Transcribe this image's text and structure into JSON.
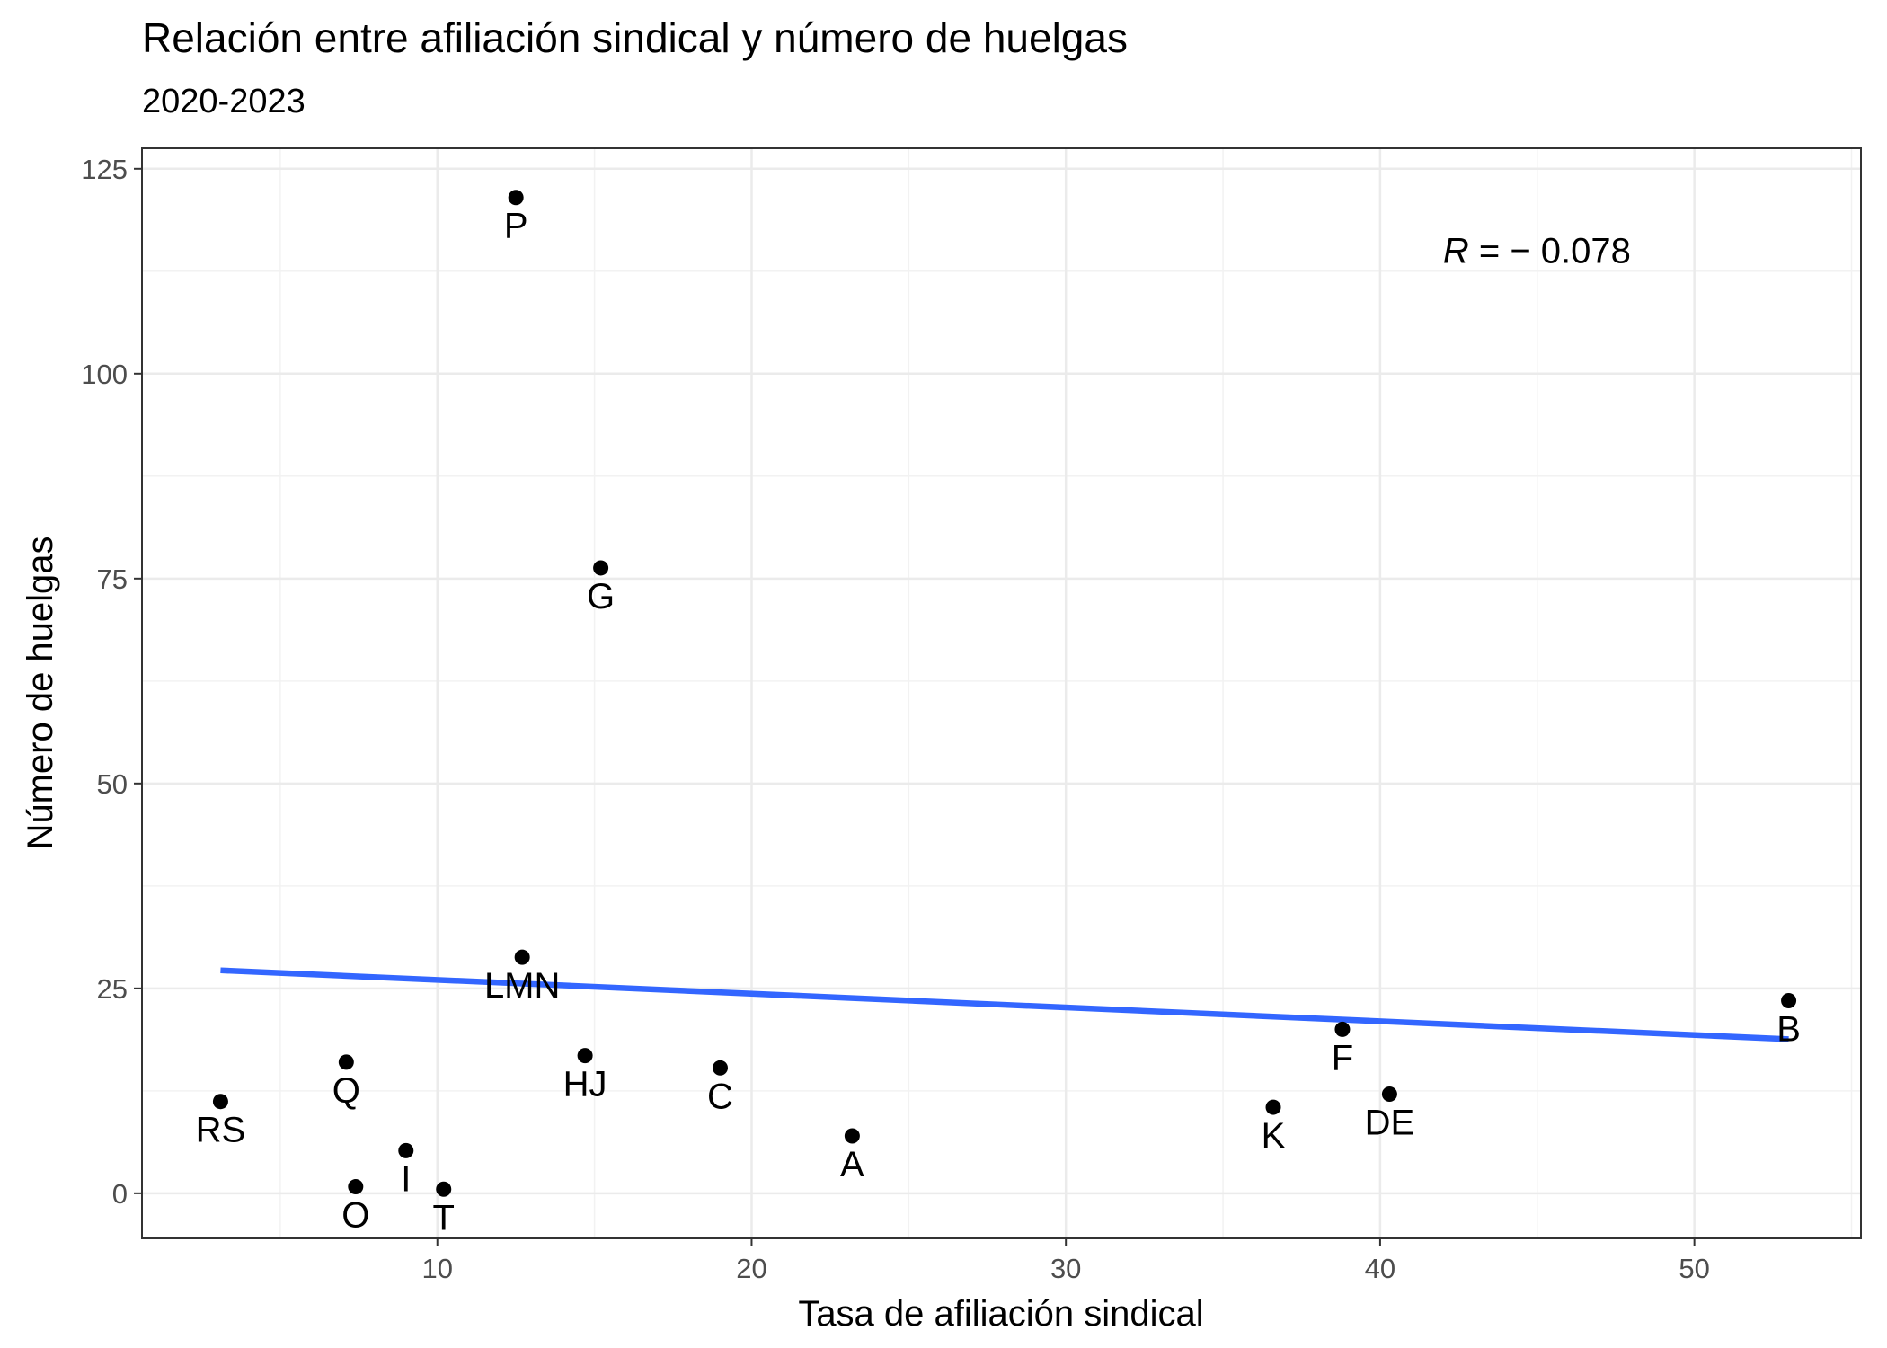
{
  "chart_data": {
    "type": "scatter",
    "title": "Relación entre afiliación sindical y número de huelgas",
    "subtitle": "2020-2023",
    "xlabel": "Tasa de afiliación sindical",
    "ylabel": "Número de huelgas",
    "xlim": [
      0.6,
      55.3
    ],
    "ylim": [
      -5.5,
      127.5
    ],
    "x_ticks": [
      10,
      20,
      30,
      40,
      50
    ],
    "x_tick_labels": [
      "10",
      "20",
      "30",
      "40",
      "50"
    ],
    "y_ticks": [
      0,
      25,
      50,
      75,
      100,
      125
    ],
    "y_tick_labels": [
      "0",
      "25",
      "50",
      "75",
      "100",
      "125"
    ],
    "grid": true,
    "legend": "none",
    "points": [
      {
        "label": "P",
        "x": 12.5,
        "y": 121.5
      },
      {
        "label": "G",
        "x": 15.2,
        "y": 76.3
      },
      {
        "label": "LMN",
        "x": 12.7,
        "y": 28.8
      },
      {
        "label": "B",
        "x": 53.0,
        "y": 23.5
      },
      {
        "label": "F",
        "x": 38.8,
        "y": 20.0
      },
      {
        "label": "HJ",
        "x": 14.7,
        "y": 16.8
      },
      {
        "label": "Q",
        "x": 7.1,
        "y": 16.0
      },
      {
        "label": "C",
        "x": 19.0,
        "y": 15.3
      },
      {
        "label": "DE",
        "x": 40.3,
        "y": 12.1
      },
      {
        "label": "RS",
        "x": 3.1,
        "y": 11.2
      },
      {
        "label": "K",
        "x": 36.6,
        "y": 10.5
      },
      {
        "label": "A",
        "x": 23.2,
        "y": 7.0
      },
      {
        "label": "I",
        "x": 9.0,
        "y": 5.2
      },
      {
        "label": "O",
        "x": 7.4,
        "y": 0.8
      },
      {
        "label": "T",
        "x": 10.2,
        "y": 0.5
      }
    ],
    "regression_line": {
      "x": [
        3.1,
        53.0
      ],
      "y": [
        27.2,
        18.8
      ],
      "color": "#3366ff"
    },
    "annotation": {
      "prefix": "R",
      "text": " = − 0.078",
      "x": 42.0,
      "y": 113.5
    },
    "point_color": "#000000"
  }
}
